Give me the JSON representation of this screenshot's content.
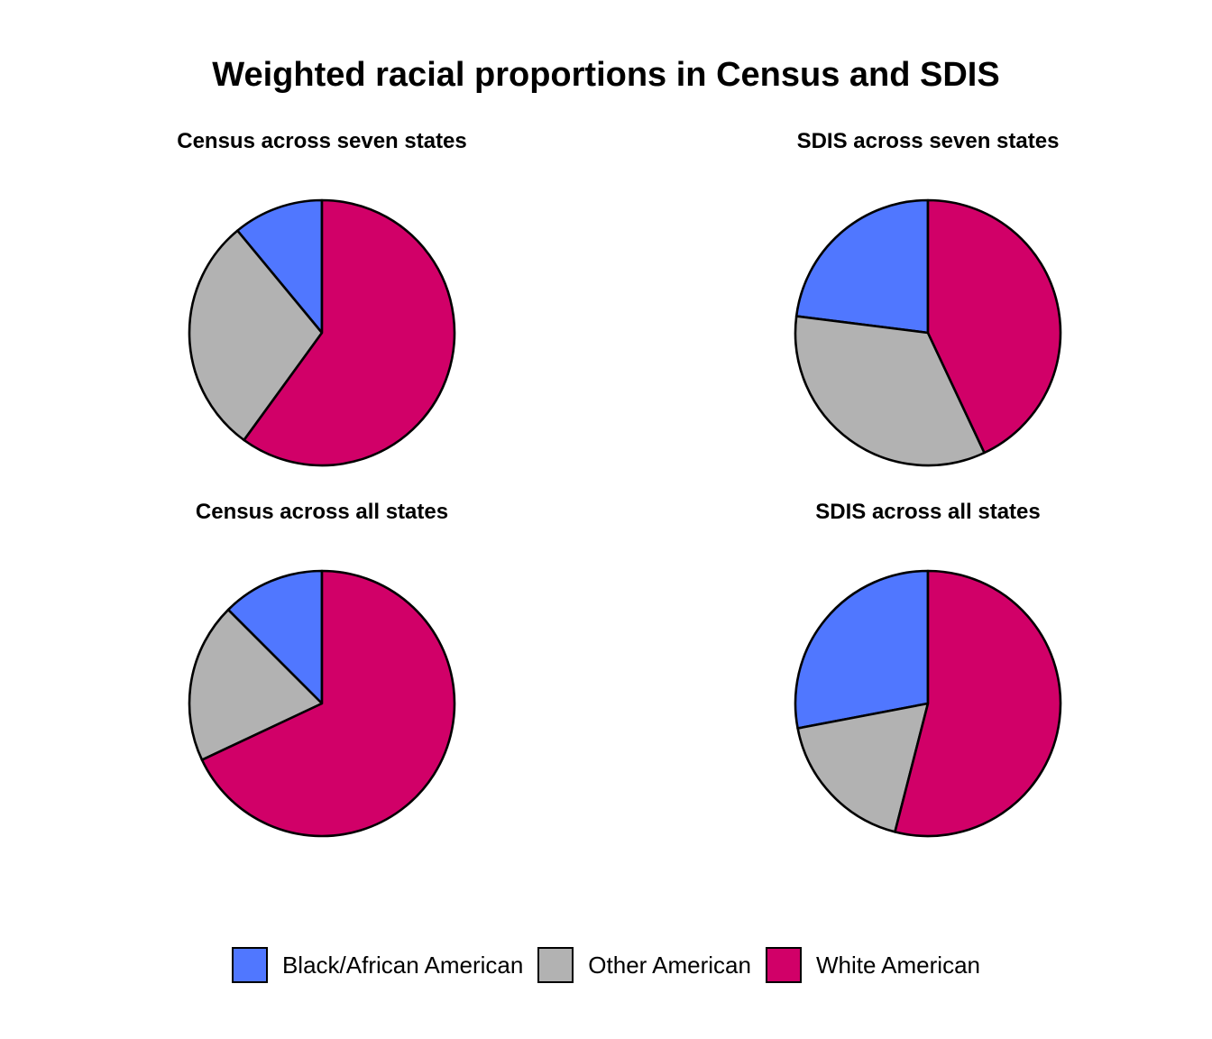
{
  "chart_data": {
    "type": "pie",
    "title": "Weighted racial proportions in Census and SDIS",
    "legend": {
      "position": "bottom",
      "entries": [
        {
          "name": "Black/African American",
          "color": "#5077FF"
        },
        {
          "name": "Other American",
          "color": "#B2B2B2"
        },
        {
          "name": "White American",
          "color": "#D10068"
        }
      ]
    },
    "panels": [
      {
        "title": "Census across seven states",
        "slices": [
          {
            "name": "Black/African American",
            "value": 0.11
          },
          {
            "name": "Other American",
            "value": 0.29
          },
          {
            "name": "White American",
            "value": 0.6
          }
        ]
      },
      {
        "title": "SDIS across seven states",
        "slices": [
          {
            "name": "Black/African American",
            "value": 0.23
          },
          {
            "name": "Other American",
            "value": 0.34
          },
          {
            "name": "White American",
            "value": 0.43
          }
        ]
      },
      {
        "title": "Census across all states",
        "slices": [
          {
            "name": "Black/African American",
            "value": 0.125
          },
          {
            "name": "Other American",
            "value": 0.195
          },
          {
            "name": "White American",
            "value": 0.68
          }
        ]
      },
      {
        "title": "SDIS across all states",
        "slices": [
          {
            "name": "Black/African American",
            "value": 0.28
          },
          {
            "name": "Other American",
            "value": 0.18
          },
          {
            "name": "White American",
            "value": 0.54
          }
        ]
      }
    ]
  }
}
